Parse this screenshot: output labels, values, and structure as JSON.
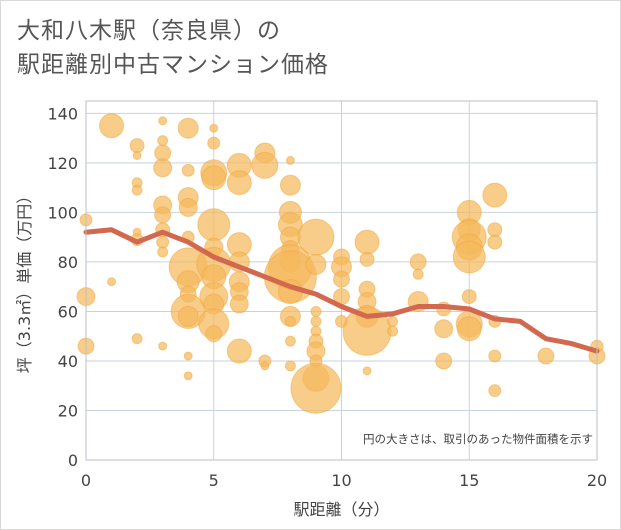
{
  "title_line1": "大和八木駅（奈良県）の",
  "title_line2": "駅距離別中古マンション価格",
  "chart_data": {
    "type": "scatter",
    "title": "大和八木駅（奈良県）の駅距離別中古マンション価格",
    "xlabel": "駅距離（分）",
    "ylabel": "坪（3.3㎡）単価（万円）",
    "xlim": [
      0,
      20
    ],
    "ylim": [
      0,
      145
    ],
    "x_ticks": [
      0,
      5,
      10,
      15,
      20
    ],
    "y_ticks": [
      0,
      20,
      40,
      60,
      80,
      100,
      120,
      140
    ],
    "grid": true,
    "note": "円の大きさは、取引のあった物件面積を示す",
    "colors": {
      "bubble": "#f5b95b",
      "line": "#d2694f",
      "grid": "#c9d3df",
      "plot_bg": "#ffffff"
    },
    "line_series": {
      "x": [
        0,
        1,
        2,
        3,
        4,
        5,
        6,
        7,
        8,
        9,
        10,
        11,
        12,
        13,
        14,
        15,
        16,
        17,
        18,
        19,
        20
      ],
      "y": [
        92,
        93,
        88,
        92,
        88,
        82,
        78,
        74,
        70,
        67,
        62,
        58,
        59,
        62,
        62,
        61,
        57,
        56,
        49,
        47,
        44
      ]
    },
    "bubbles": [
      {
        "x": 0,
        "y": 97,
        "r": 6
      },
      {
        "x": 0,
        "y": 66,
        "r": 9
      },
      {
        "x": 0,
        "y": 46,
        "r": 8
      },
      {
        "x": 1,
        "y": 135,
        "r": 12
      },
      {
        "x": 1,
        "y": 72,
        "r": 4
      },
      {
        "x": 2,
        "y": 127,
        "r": 7
      },
      {
        "x": 2,
        "y": 123,
        "r": 4
      },
      {
        "x": 2,
        "y": 112,
        "r": 5
      },
      {
        "x": 2,
        "y": 109,
        "r": 5
      },
      {
        "x": 2,
        "y": 92,
        "r": 4
      },
      {
        "x": 2,
        "y": 89,
        "r": 6
      },
      {
        "x": 2,
        "y": 49,
        "r": 5
      },
      {
        "x": 3,
        "y": 137,
        "r": 4
      },
      {
        "x": 3,
        "y": 129,
        "r": 5
      },
      {
        "x": 3,
        "y": 124,
        "r": 8
      },
      {
        "x": 3,
        "y": 118,
        "r": 9
      },
      {
        "x": 3,
        "y": 103,
        "r": 9
      },
      {
        "x": 3,
        "y": 99,
        "r": 8
      },
      {
        "x": 3,
        "y": 93,
        "r": 7
      },
      {
        "x": 3,
        "y": 88,
        "r": 6
      },
      {
        "x": 3,
        "y": 84,
        "r": 5
      },
      {
        "x": 3,
        "y": 46,
        "r": 4
      },
      {
        "x": 4,
        "y": 134,
        "r": 10
      },
      {
        "x": 4,
        "y": 117,
        "r": 6
      },
      {
        "x": 4,
        "y": 106,
        "r": 10
      },
      {
        "x": 4,
        "y": 102,
        "r": 9
      },
      {
        "x": 4,
        "y": 90,
        "r": 6
      },
      {
        "x": 4,
        "y": 78,
        "r": 19
      },
      {
        "x": 4,
        "y": 72,
        "r": 11
      },
      {
        "x": 4,
        "y": 67,
        "r": 8
      },
      {
        "x": 4,
        "y": 60,
        "r": 17
      },
      {
        "x": 4,
        "y": 58,
        "r": 10
      },
      {
        "x": 4,
        "y": 42,
        "r": 4
      },
      {
        "x": 4,
        "y": 34,
        "r": 4
      },
      {
        "x": 5,
        "y": 134,
        "r": 4
      },
      {
        "x": 5,
        "y": 128,
        "r": 6
      },
      {
        "x": 5,
        "y": 116,
        "r": 13
      },
      {
        "x": 5,
        "y": 114,
        "r": 12
      },
      {
        "x": 5,
        "y": 95,
        "r": 16
      },
      {
        "x": 5,
        "y": 86,
        "r": 9
      },
      {
        "x": 5,
        "y": 79,
        "r": 17
      },
      {
        "x": 5,
        "y": 74,
        "r": 12
      },
      {
        "x": 5,
        "y": 66,
        "r": 14
      },
      {
        "x": 5,
        "y": 63,
        "r": 10
      },
      {
        "x": 5,
        "y": 55,
        "r": 15
      },
      {
        "x": 5,
        "y": 51,
        "r": 8
      },
      {
        "x": 6,
        "y": 119,
        "r": 12
      },
      {
        "x": 6,
        "y": 112,
        "r": 12
      },
      {
        "x": 6,
        "y": 87,
        "r": 12
      },
      {
        "x": 6,
        "y": 80,
        "r": 10
      },
      {
        "x": 6,
        "y": 72,
        "r": 10
      },
      {
        "x": 6,
        "y": 68,
        "r": 9
      },
      {
        "x": 6,
        "y": 63,
        "r": 9
      },
      {
        "x": 6,
        "y": 44,
        "r": 12
      },
      {
        "x": 7,
        "y": 124,
        "r": 10
      },
      {
        "x": 7,
        "y": 119,
        "r": 13
      },
      {
        "x": 7,
        "y": 40,
        "r": 6
      },
      {
        "x": 7,
        "y": 38,
        "r": 4
      },
      {
        "x": 8,
        "y": 121,
        "r": 4
      },
      {
        "x": 8,
        "y": 111,
        "r": 10
      },
      {
        "x": 8,
        "y": 100,
        "r": 11
      },
      {
        "x": 8,
        "y": 95,
        "r": 12
      },
      {
        "x": 8,
        "y": 90,
        "r": 10
      },
      {
        "x": 8,
        "y": 85,
        "r": 9
      },
      {
        "x": 8,
        "y": 80,
        "r": 10
      },
      {
        "x": 8,
        "y": 78,
        "r": 22
      },
      {
        "x": 8,
        "y": 74,
        "r": 26
      },
      {
        "x": 8,
        "y": 68,
        "r": 12
      },
      {
        "x": 8,
        "y": 58,
        "r": 10
      },
      {
        "x": 8,
        "y": 56,
        "r": 5
      },
      {
        "x": 8,
        "y": 48,
        "r": 5
      },
      {
        "x": 8,
        "y": 38,
        "r": 5
      },
      {
        "x": 9,
        "y": 90,
        "r": 18
      },
      {
        "x": 9,
        "y": 79,
        "r": 10
      },
      {
        "x": 9,
        "y": 60,
        "r": 5
      },
      {
        "x": 9,
        "y": 56,
        "r": 5
      },
      {
        "x": 9,
        "y": 52,
        "r": 5
      },
      {
        "x": 9,
        "y": 48,
        "r": 7
      },
      {
        "x": 9,
        "y": 44,
        "r": 9
      },
      {
        "x": 9,
        "y": 40,
        "r": 6
      },
      {
        "x": 9,
        "y": 33,
        "r": 13
      },
      {
        "x": 9,
        "y": 29,
        "r": 25
      },
      {
        "x": 10,
        "y": 82,
        "r": 8
      },
      {
        "x": 10,
        "y": 78,
        "r": 10
      },
      {
        "x": 10,
        "y": 73,
        "r": 8
      },
      {
        "x": 10,
        "y": 66,
        "r": 8
      },
      {
        "x": 10,
        "y": 56,
        "r": 6
      },
      {
        "x": 11,
        "y": 88,
        "r": 12
      },
      {
        "x": 11,
        "y": 81,
        "r": 7
      },
      {
        "x": 11,
        "y": 69,
        "r": 8
      },
      {
        "x": 11,
        "y": 64,
        "r": 9
      },
      {
        "x": 11,
        "y": 58,
        "r": 11
      },
      {
        "x": 11,
        "y": 52,
        "r": 24
      },
      {
        "x": 11,
        "y": 36,
        "r": 4
      },
      {
        "x": 12,
        "y": 56,
        "r": 5
      },
      {
        "x": 12,
        "y": 52,
        "r": 5
      },
      {
        "x": 13,
        "y": 80,
        "r": 8
      },
      {
        "x": 13,
        "y": 75,
        "r": 5
      },
      {
        "x": 13,
        "y": 64,
        "r": 10
      },
      {
        "x": 14,
        "y": 61,
        "r": 7
      },
      {
        "x": 14,
        "y": 53,
        "r": 9
      },
      {
        "x": 14,
        "y": 40,
        "r": 8
      },
      {
        "x": 15,
        "y": 100,
        "r": 12
      },
      {
        "x": 15,
        "y": 93,
        "r": 11
      },
      {
        "x": 15,
        "y": 90,
        "r": 17
      },
      {
        "x": 15,
        "y": 86,
        "r": 13
      },
      {
        "x": 15,
        "y": 82,
        "r": 16
      },
      {
        "x": 15,
        "y": 66,
        "r": 7
      },
      {
        "x": 15,
        "y": 55,
        "r": 13
      },
      {
        "x": 15,
        "y": 53,
        "r": 12
      },
      {
        "x": 16,
        "y": 107,
        "r": 12
      },
      {
        "x": 16,
        "y": 93,
        "r": 7
      },
      {
        "x": 16,
        "y": 88,
        "r": 7
      },
      {
        "x": 16,
        "y": 56,
        "r": 6
      },
      {
        "x": 16,
        "y": 42,
        "r": 6
      },
      {
        "x": 16,
        "y": 28,
        "r": 6
      },
      {
        "x": 18,
        "y": 42,
        "r": 8
      },
      {
        "x": 20,
        "y": 46,
        "r": 6
      },
      {
        "x": 20,
        "y": 42,
        "r": 8
      }
    ]
  }
}
